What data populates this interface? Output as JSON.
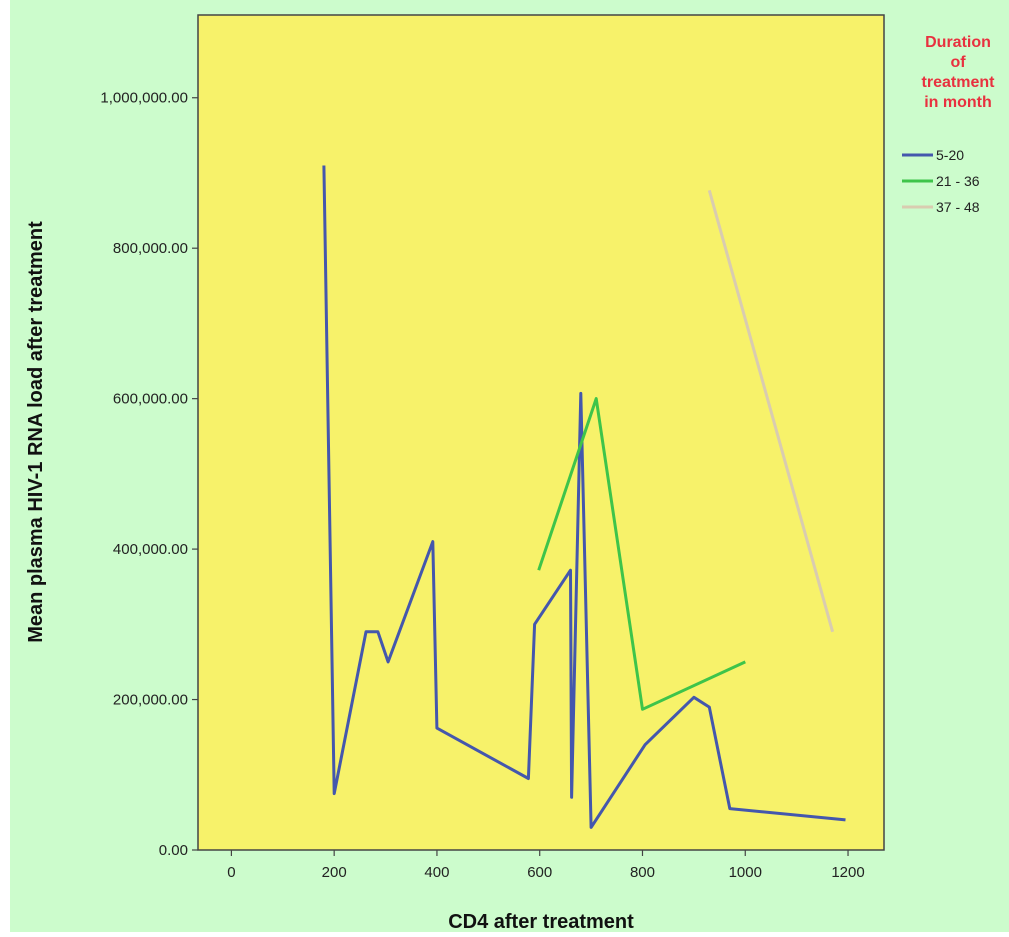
{
  "chart_data": {
    "type": "line",
    "xlabel": "CD4 after treatment",
    "ylabel": "Mean plasma HIV-1 RNA load after treatment",
    "xlim": [
      -65,
      1270
    ],
    "ylim": [
      0,
      1110000
    ],
    "x_ticks": [
      0,
      200,
      400,
      600,
      800,
      1000,
      1200
    ],
    "x_tick_labels": [
      "0",
      "200",
      "400",
      "600",
      "800",
      "1000",
      "1200"
    ],
    "y_ticks": [
      0,
      200000,
      400000,
      600000,
      800000,
      1000000
    ],
    "y_tick_labels": [
      "0.00",
      "200,000.00",
      "400,000.00",
      "600,000.00",
      "800,000.00",
      "1,000,000.00"
    ],
    "grid": false,
    "legend": {
      "title_lines": [
        "Duration",
        "of",
        "treatment",
        "in month"
      ],
      "placement": "right",
      "title_color": "#e8313f"
    },
    "colors": {
      "page_background": "#ccfccc",
      "plot_background": "#f7f26a",
      "frame": "#444444"
    },
    "series": [
      {
        "name": "5-20",
        "color": "#4457ad",
        "points": [
          [
            180,
            910000
          ],
          [
            200,
            75000
          ],
          [
            262,
            290000
          ],
          [
            285,
            290000
          ],
          [
            305,
            250000
          ],
          [
            392,
            410000
          ],
          [
            400,
            162000
          ],
          [
            578,
            95000
          ],
          [
            590,
            300000
          ],
          [
            660,
            372000
          ],
          [
            662,
            70000
          ],
          [
            680,
            607000
          ],
          [
            700,
            30000
          ],
          [
            805,
            140000
          ],
          [
            900,
            203000
          ],
          [
            930,
            190000
          ],
          [
            970,
            55000
          ],
          [
            1195,
            40000
          ]
        ]
      },
      {
        "name": "21 - 36",
        "color": "#3ec44a",
        "points": [
          [
            598,
            372000
          ],
          [
            710,
            600000
          ],
          [
            800,
            187000
          ],
          [
            1000,
            250000
          ]
        ]
      },
      {
        "name": "37 - 48",
        "color": "#d9ccb0",
        "points": [
          [
            930,
            877000
          ],
          [
            1170,
            290000
          ]
        ]
      }
    ]
  }
}
